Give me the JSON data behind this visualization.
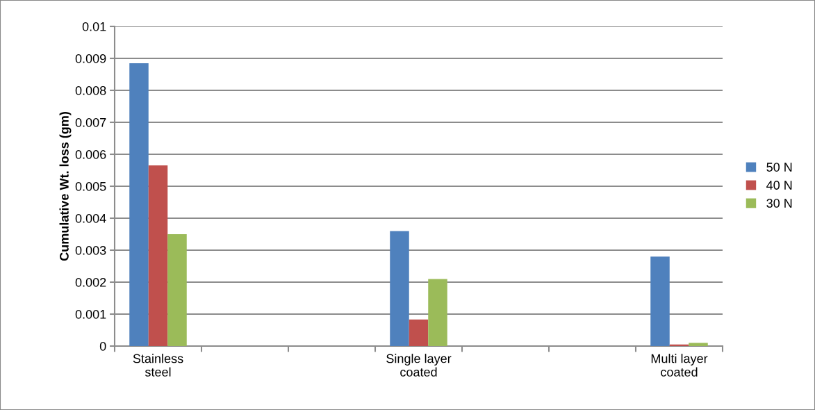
{
  "chart_data": {
    "type": "bar",
    "ylabel": "Cumulative Wt. loss (gm)",
    "categories": [
      "Stainless\nsteel",
      null,
      null,
      "Single layer\ncoated",
      null,
      null,
      "Multi layer\ncoated"
    ],
    "series": [
      {
        "name": "50 N",
        "color": "#4f81bd",
        "values": [
          0.00885,
          null,
          null,
          0.0036,
          null,
          null,
          0.0028
        ]
      },
      {
        "name": "40 N",
        "color": "#c0504d",
        "values": [
          0.00565,
          null,
          null,
          0.00083,
          null,
          null,
          5e-05
        ]
      },
      {
        "name": "30 N",
        "color": "#9bbb59",
        "values": [
          0.0035,
          null,
          null,
          0.0021,
          null,
          null,
          0.0001
        ]
      }
    ],
    "ylim": [
      0,
      0.01
    ],
    "yticks": [
      0,
      0.001,
      0.002,
      0.003,
      0.004,
      0.005,
      0.006,
      0.007,
      0.008,
      0.009,
      0.01
    ],
    "grid": "y",
    "legend": "right"
  }
}
